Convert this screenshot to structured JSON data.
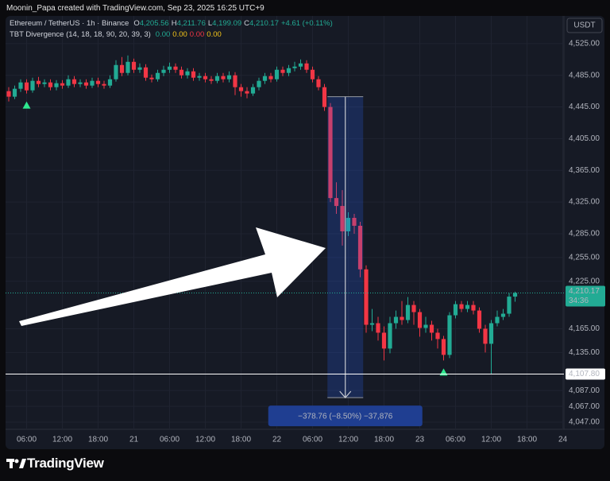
{
  "header": "Moonin_Papa created with TradingView.com, Sep 23, 2025 16:25 UTC+9",
  "footer": "TradingView",
  "currency": "USDT",
  "legend": {
    "symbol": "Ethereum / TetherUS · 1h · Binance",
    "ohlc": [
      {
        "key": "O",
        "value": "4,205.56"
      },
      {
        "key": "H",
        "value": "4,211.76"
      },
      {
        "key": "L",
        "value": "4,199.09"
      },
      {
        "key": "C",
        "value": "4,210.17"
      }
    ],
    "change": "+4.61 (+0.11%)",
    "indicator": "TBT Divergence (14, 18, 18, 90, 20, 39, 3)",
    "indicator_values": [
      {
        "value": "0.00",
        "color": "#22ab94"
      },
      {
        "value": "0.00",
        "color": "#f5c518"
      },
      {
        "value": "0.00",
        "color": "#f23645"
      },
      {
        "value": "0.00",
        "color": "#f5c518"
      }
    ]
  },
  "chart_data": {
    "type": "candlestick",
    "up_color": "#22ab94",
    "down_color": "#f23645",
    "categories": [
      null,
      null,
      null,
      "06:00",
      null,
      null,
      null,
      null,
      null,
      "12:00",
      null,
      null,
      null,
      null,
      null,
      "18:00",
      null,
      null,
      null,
      null,
      null,
      "21",
      null,
      null,
      null,
      null,
      null,
      "06:00",
      null,
      null,
      null,
      null,
      null,
      "12:00",
      null,
      null,
      null,
      null,
      null,
      "18:00",
      null,
      null,
      null,
      null,
      null,
      "22",
      null,
      null,
      null,
      null,
      null,
      "06:00",
      null,
      null,
      null,
      null,
      null,
      "12:00",
      null,
      null,
      null,
      null,
      null,
      "18:00",
      null,
      null,
      null,
      null,
      null,
      "23",
      null,
      null,
      null,
      null,
      null,
      "06:00",
      null,
      null,
      null,
      null,
      null,
      "12:00",
      null,
      null,
      null,
      null,
      null,
      "18:00",
      null,
      null,
      null,
      null,
      null,
      "24"
    ],
    "open": [
      4465,
      4458,
      4468,
      4476,
      4466,
      4478,
      4474,
      4476,
      4470,
      4475,
      4472,
      4480,
      4474,
      4476,
      4472,
      4478,
      4474,
      4472,
      4480,
      4498,
      4488,
      4502,
      4492,
      4495,
      4482,
      4480,
      4488,
      4492,
      4496,
      4492,
      4485,
      4490,
      4482,
      4484,
      4480,
      4478,
      4484,
      4480,
      4485,
      4470,
      4465,
      4462,
      4470,
      4478,
      4484,
      4480,
      4492,
      4488,
      4494,
      4496,
      4500,
      4492,
      4480,
      4470,
      4445,
      4330,
      4320,
      4288,
      4305,
      4295,
      4240,
      4170,
      4172,
      4160,
      4140,
      4172,
      4180,
      4176,
      4195,
      4186,
      4166,
      4170,
      4160,
      4152,
      4132,
      4182,
      4196,
      4190,
      4195,
      4188,
      4165,
      4146,
      4172,
      4180,
      4184,
      4205.56,
      null,
      null,
      null,
      null,
      null,
      null,
      null,
      null
    ],
    "high": [
      4470,
      4472,
      4480,
      4480,
      4482,
      4483,
      4480,
      4480,
      4479,
      4479,
      4485,
      4484,
      4480,
      4480,
      4482,
      4482,
      4478,
      4485,
      4504,
      4508,
      4510,
      4506,
      4500,
      4499,
      4486,
      4492,
      4497,
      4501,
      4500,
      4496,
      4494,
      4494,
      4488,
      4488,
      4484,
      4488,
      4488,
      4490,
      4489,
      4474,
      4470,
      4474,
      4482,
      4488,
      4488,
      4496,
      4496,
      4498,
      4502,
      4505,
      4504,
      4496,
      4484,
      4474,
      4450,
      4350,
      4340,
      4312,
      4310,
      4300,
      4245,
      4190,
      4180,
      4168,
      4180,
      4188,
      4200,
      4205,
      4200,
      4190,
      4180,
      4175,
      4165,
      4156,
      4186,
      4200,
      4200,
      4200,
      4200,
      4192,
      4170,
      4176,
      4188,
      4190,
      4210,
      4211.76,
      null,
      null,
      null,
      null,
      null,
      null,
      null,
      null
    ],
    "low": [
      4452,
      4455,
      4464,
      4462,
      4463,
      4470,
      4470,
      4466,
      4466,
      4468,
      4469,
      4470,
      4470,
      4468,
      4469,
      4470,
      4468,
      4469,
      4477,
      4484,
      4485,
      4488,
      4488,
      4478,
      4476,
      4477,
      4484,
      4488,
      4488,
      4481,
      4481,
      4478,
      4478,
      4476,
      4474,
      4475,
      4476,
      4476,
      4460,
      4458,
      4456,
      4459,
      4466,
      4474,
      4476,
      4477,
      4484,
      4484,
      4490,
      4492,
      4488,
      4476,
      4466,
      4440,
      4325,
      4310,
      4270,
      4282,
      4285,
      4230,
      4160,
      4162,
      4150,
      4125,
      4134,
      4165,
      4170,
      4172,
      4170,
      4155,
      4160,
      4150,
      4140,
      4125,
      4128,
      4178,
      4186,
      4186,
      4183,
      4160,
      4135,
      4107.8,
      4168,
      4176,
      4180,
      4199.09,
      null,
      null,
      null,
      null,
      null,
      null,
      null,
      null
    ],
    "close": [
      4458,
      4468,
      4476,
      4466,
      4478,
      4474,
      4476,
      4470,
      4475,
      4472,
      4480,
      4474,
      4476,
      4472,
      4478,
      4474,
      4472,
      4480,
      4498,
      4488,
      4502,
      4492,
      4495,
      4482,
      4480,
      4488,
      4492,
      4496,
      4492,
      4485,
      4490,
      4482,
      4484,
      4480,
      4478,
      4484,
      4480,
      4485,
      4470,
      4465,
      4462,
      4470,
      4478,
      4484,
      4480,
      4492,
      4488,
      4494,
      4496,
      4500,
      4492,
      4480,
      4470,
      4445,
      4330,
      4320,
      4288,
      4305,
      4295,
      4240,
      4170,
      4172,
      4160,
      4140,
      4172,
      4180,
      4176,
      4195,
      4186,
      4166,
      4170,
      4160,
      4152,
      4132,
      4182,
      4196,
      4190,
      4195,
      4188,
      4165,
      4146,
      4172,
      4180,
      4184,
      4205.56,
      4210.17,
      null,
      null,
      null,
      null,
      null,
      null,
      null,
      null
    ],
    "ylim": [
      4038,
      4560
    ],
    "yticks": [
      {
        "value": 4525,
        "label": "4,525.00"
      },
      {
        "value": 4485,
        "label": "4,485.00"
      },
      {
        "value": 4445,
        "label": "4,445.00"
      },
      {
        "value": 4405,
        "label": "4,405.00"
      },
      {
        "value": 4365,
        "label": "4,365.00"
      },
      {
        "value": 4325,
        "label": "4,325.00"
      },
      {
        "value": 4285,
        "label": "4,285.00"
      },
      {
        "value": 4255,
        "label": "4,255.00"
      },
      {
        "value": 4225,
        "label": "4,225.00"
      },
      {
        "value": 4165,
        "label": "4,165.00"
      },
      {
        "value": 4135,
        "label": "4,135.00"
      },
      {
        "value": 4087,
        "label": "4,087.00"
      },
      {
        "value": 4067,
        "label": "4,067.00"
      },
      {
        "value": 4047,
        "label": "4,047.00"
      }
    ],
    "grid": true,
    "last_price": {
      "value": 4210.17,
      "label": "4,210.17",
      "countdown": "34:36",
      "color": "#22ab94"
    },
    "low_line": {
      "value": 4107.8,
      "label": "4,107.80",
      "color": "#ffffff"
    },
    "signals": {
      "color": "#2ee88f",
      "indices": [
        3,
        73
      ]
    },
    "measure": {
      "label": "−378.76 (−8.50%) −37,876",
      "top": 4458,
      "bottom": 4078,
      "from_index": 54,
      "to_index": 59
    }
  }
}
